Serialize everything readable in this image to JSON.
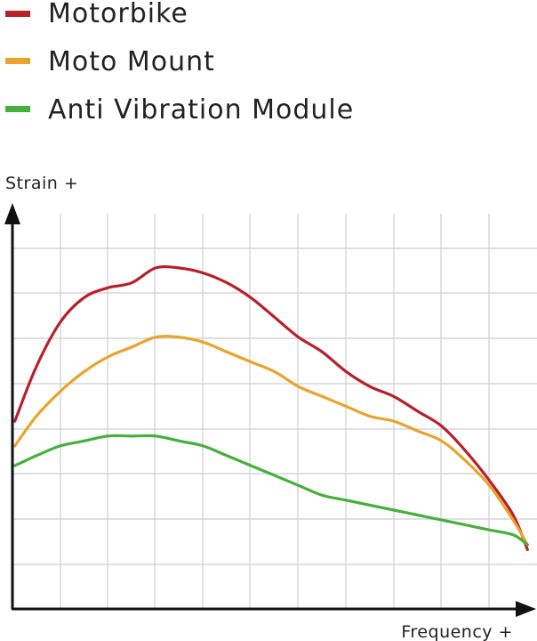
{
  "chart_data": {
    "type": "line",
    "title": "",
    "xlabel": "Frequency +",
    "ylabel": "Strain +",
    "grid": true,
    "legend_position": "top-left",
    "xlim": [
      0,
      11
    ],
    "ylim": [
      0,
      8
    ],
    "series": [
      {
        "name": "Motorbike",
        "color": "#b8202b",
        "x": [
          0.05,
          0.5,
          1,
          1.5,
          2,
          2.5,
          3,
          3.5,
          4,
          4.5,
          5,
          5.5,
          6,
          6.5,
          7,
          7.5,
          8,
          8.5,
          9,
          9.5,
          10,
          10.5,
          10.8
        ],
        "y": [
          3.8,
          4.9,
          5.8,
          6.3,
          6.5,
          6.6,
          6.9,
          6.9,
          6.8,
          6.6,
          6.3,
          5.9,
          5.5,
          5.2,
          4.8,
          4.5,
          4.3,
          4.0,
          3.7,
          3.2,
          2.6,
          1.9,
          1.2
        ]
      },
      {
        "name": "Moto Mount",
        "color": "#e9a42b",
        "x": [
          0.05,
          0.5,
          1,
          1.5,
          2,
          2.5,
          3,
          3.5,
          4,
          4.5,
          5,
          5.5,
          6,
          6.5,
          7,
          7.5,
          8,
          8.5,
          9,
          9.5,
          10,
          10.5,
          10.8
        ],
        "y": [
          3.3,
          3.9,
          4.4,
          4.8,
          5.1,
          5.3,
          5.5,
          5.5,
          5.4,
          5.2,
          5.0,
          4.8,
          4.5,
          4.3,
          4.1,
          3.9,
          3.8,
          3.6,
          3.4,
          3.0,
          2.5,
          1.8,
          1.3
        ]
      },
      {
        "name": "Anti Vibration Module",
        "color": "#46b03c",
        "x": [
          0.05,
          0.5,
          1,
          1.5,
          2,
          2.5,
          3,
          3.5,
          4,
          4.5,
          5,
          5.5,
          6,
          6.5,
          7,
          7.5,
          8,
          8.5,
          9,
          9.5,
          10,
          10.5,
          10.8
        ],
        "y": [
          2.9,
          3.1,
          3.3,
          3.4,
          3.5,
          3.5,
          3.5,
          3.4,
          3.3,
          3.1,
          2.9,
          2.7,
          2.5,
          2.3,
          2.2,
          2.1,
          2.0,
          1.9,
          1.8,
          1.7,
          1.6,
          1.5,
          1.3
        ]
      }
    ]
  },
  "legend": {
    "items": [
      {
        "label": "Motorbike",
        "color": "#b8202b"
      },
      {
        "label": "Moto Mount",
        "color": "#e9a42b"
      },
      {
        "label": "Anti Vibration Module",
        "color": "#46b03c"
      }
    ]
  },
  "axes": {
    "y_label": "Strain +",
    "x_label": "Frequency +",
    "axis_color": "#111111",
    "grid_color": "#d6d6d6"
  }
}
